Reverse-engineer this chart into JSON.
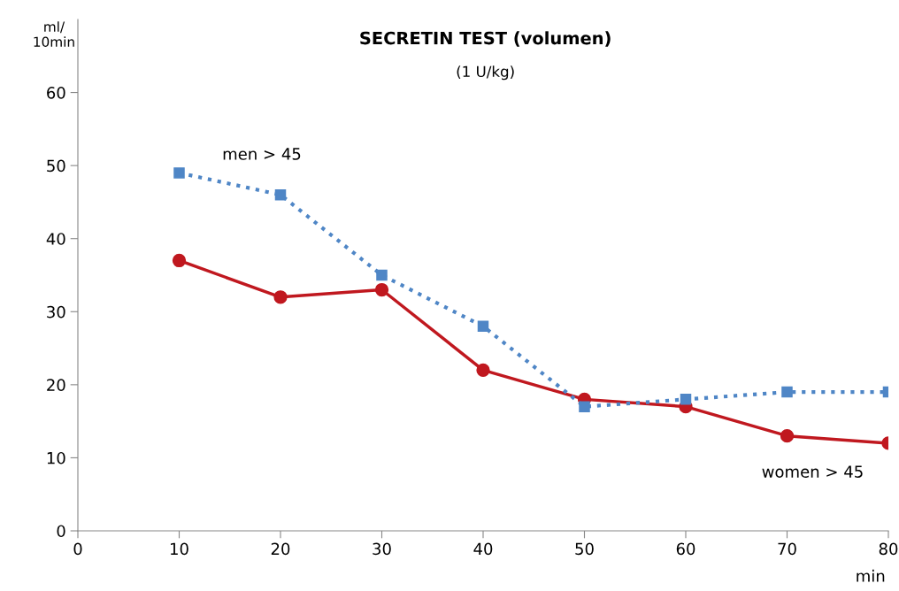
{
  "chart_data": {
    "type": "line",
    "title": "SECRETIN TEST (volumen)",
    "subtitle": "(1 U/kg)",
    "xlabel": "min",
    "ylabel": "ml/\n10min",
    "x": [
      10,
      20,
      30,
      40,
      50,
      60,
      70,
      80
    ],
    "series": [
      {
        "name": "men > 45",
        "color": "#4f86c6",
        "values": [
          49,
          46,
          35,
          28,
          17,
          18,
          19,
          19
        ],
        "marker": "square",
        "line_style": "dotted"
      },
      {
        "name": "women > 45",
        "color": "#c0181f",
        "values": [
          37,
          32,
          33,
          22,
          18,
          17,
          13,
          12
        ],
        "marker": "circle",
        "line_style": "solid"
      }
    ],
    "xlim": [
      0,
      80
    ],
    "xticks": [
      0,
      10,
      20,
      30,
      40,
      50,
      60,
      70,
      80
    ],
    "ylim": [
      0,
      70
    ],
    "yticks": [
      0,
      10,
      20,
      30,
      40,
      50,
      60
    ],
    "grid": false,
    "legend": false
  }
}
